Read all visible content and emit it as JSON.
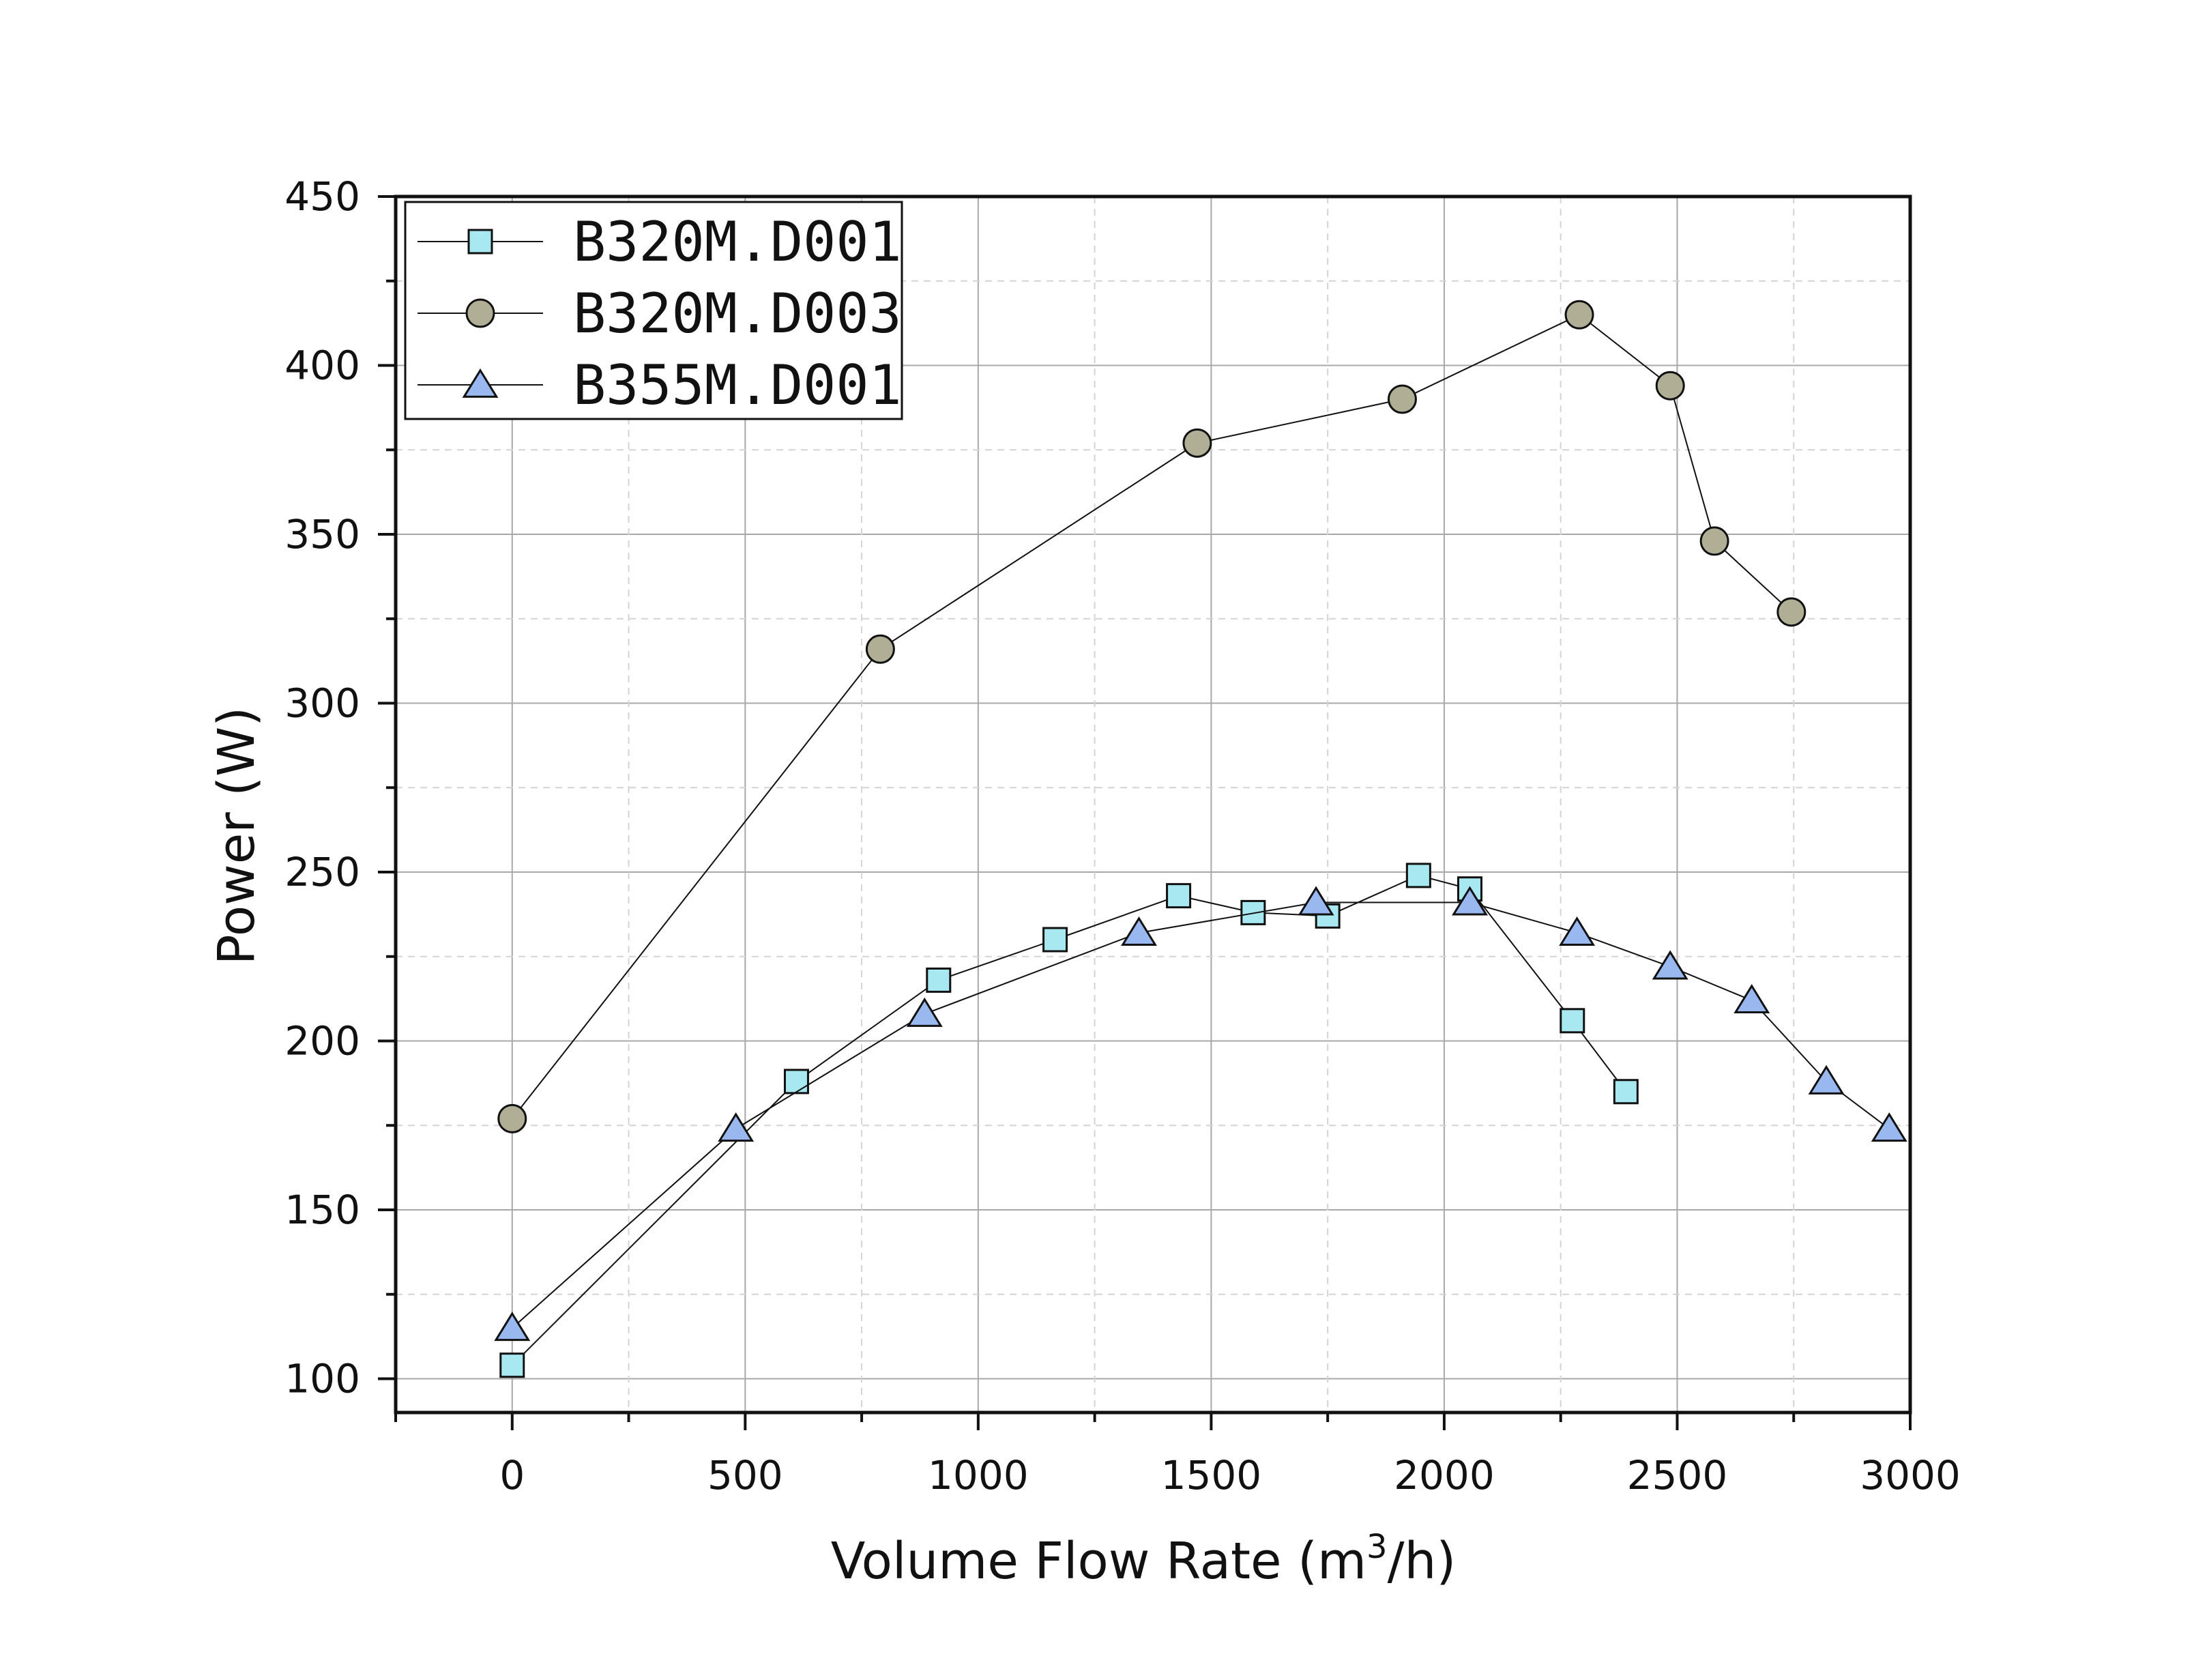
{
  "chart_data": {
    "type": "line",
    "title": "",
    "xlabel_prefix": "Volume Flow Rate (m",
    "xlabel_sup": "3",
    "xlabel_suffix": "/h)",
    "ylabel": "Power (W)",
    "xlim": [
      -250,
      3000
    ],
    "ylim": [
      90,
      450
    ],
    "xticks": [
      0,
      500,
      1000,
      1500,
      2000,
      2500,
      3000
    ],
    "yticks": [
      100,
      150,
      200,
      250,
      300,
      350,
      400,
      450
    ],
    "xtick_labels": [
      "0",
      "500",
      "1000",
      "1500",
      "2000",
      "2500",
      "3000"
    ],
    "ytick_labels": [
      "100",
      "150",
      "200",
      "250",
      "300",
      "350",
      "400",
      "450"
    ],
    "grid": true,
    "legend_position": "top-left",
    "series": [
      {
        "name": "B320M.D001",
        "marker": "square",
        "color": "#A8E8F0",
        "x": [
          0,
          610,
          915,
          1165,
          1430,
          1590,
          1750,
          1945,
          2055,
          2275,
          2390
        ],
        "y": [
          104,
          188,
          218,
          230,
          243,
          238,
          237,
          249,
          245,
          206,
          185
        ]
      },
      {
        "name": "B320M.D003",
        "marker": "circle",
        "color": "#B0AF96",
        "x": [
          0,
          790,
          1470,
          1910,
          2290,
          2485,
          2580,
          2745
        ],
        "y": [
          177,
          316,
          377,
          390,
          415,
          394,
          348,
          327
        ]
      },
      {
        "name": "B355M.D001",
        "marker": "triangle",
        "color": "#9AB8F0",
        "x": [
          0,
          480,
          885,
          1345,
          1725,
          2055,
          2285,
          2485,
          2660,
          2820,
          2955
        ],
        "y": [
          115,
          174,
          208,
          232,
          241,
          241,
          232,
          222,
          212,
          188,
          174
        ]
      }
    ]
  }
}
